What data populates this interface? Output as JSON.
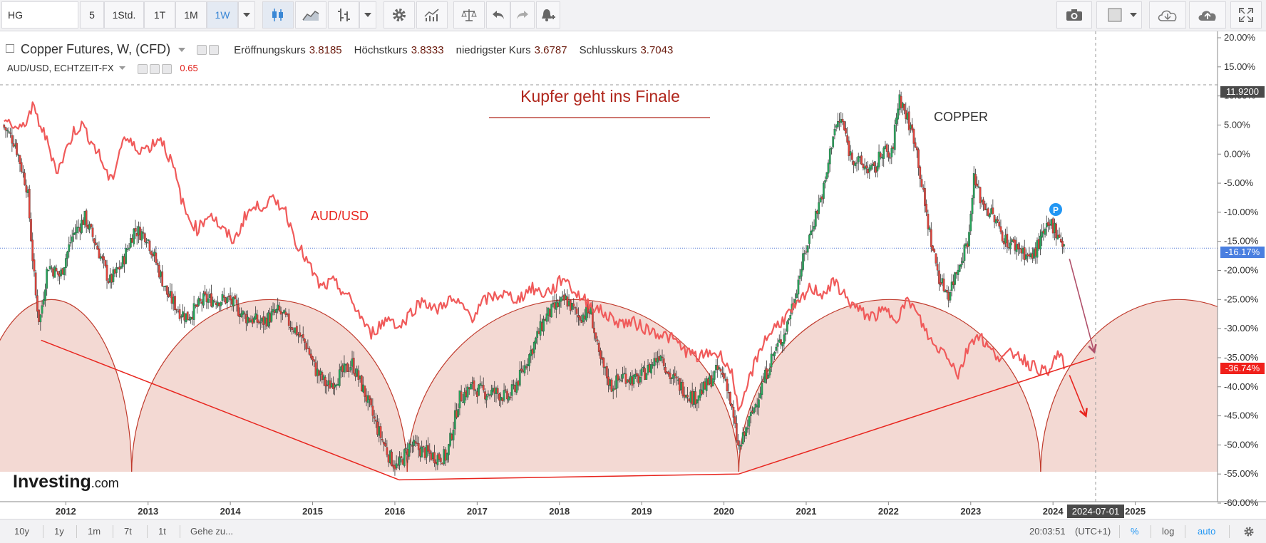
{
  "toolbar": {
    "symbol": "HG",
    "intervals": [
      "5",
      "1Std.",
      "1T",
      "1M",
      "1W"
    ],
    "active_interval": "1W"
  },
  "legend": {
    "title": "Copper Futures, W, (CFD)",
    "open_label": "Eröffnungskurs",
    "open_value": "3.8185",
    "high_label": "Höchstkurs",
    "high_value": "3.8333",
    "low_label": "niedrigster Kurs",
    "low_value": "3.6787",
    "close_label": "Schlusskurs",
    "close_value": "3.7043",
    "overlay_name": "AUD/USD, ECHTZEIT-FX",
    "overlay_value": "0.65"
  },
  "annotations": {
    "headline": "Kupfer geht ins Finale",
    "aud_label": "AUD/USD",
    "copper_label": "COPPER",
    "marker": "P"
  },
  "price_badges": {
    "crosshair": "11.9200",
    "current": "-16.17%",
    "overlay": "-36.74%"
  },
  "date_badge": "2024-07-01",
  "watermark": "Investing",
  "watermark_suffix": ".com",
  "bottom": {
    "ranges": [
      "10y",
      "1y",
      "1m",
      "7t",
      "1t"
    ],
    "goto": "Gehe zu...",
    "time": "20:03:51",
    "tz": "(UTC+1)",
    "pct": "%",
    "log": "log",
    "auto": "auto"
  },
  "chart_data": {
    "type": "line",
    "title": "",
    "xlabel": "",
    "ylabel": "",
    "x_ticks": [
      "2012",
      "2013",
      "2014",
      "2015",
      "2016",
      "2017",
      "2018",
      "2019",
      "2020",
      "2021",
      "2022",
      "2023",
      "2024",
      "2025"
    ],
    "y_ticks": [
      "20.00%",
      "15.00%",
      "10.00%",
      "5.00%",
      "0.00%",
      "-5.00%",
      "-10.00%",
      "-15.00%",
      "-20.00%",
      "-25.00%",
      "-30.00%",
      "-35.00%",
      "-40.00%",
      "-45.00%",
      "-50.00%",
      "-55.00%",
      "-60.00%"
    ],
    "ylim": [
      -60,
      20
    ],
    "xlim": [
      2011.2,
      2026.0
    ],
    "grid": false,
    "copper_color": "#26a65b",
    "copper_down_color": "#e0433b",
    "aud_color": "#f05a5a",
    "arc_color": "#c0392b",
    "series": [
      {
        "name": "COPPER",
        "points": [
          [
            2011.25,
            5
          ],
          [
            2011.4,
            2
          ],
          [
            2011.55,
            -6
          ],
          [
            2011.65,
            -24
          ],
          [
            2011.7,
            -29
          ],
          [
            2011.8,
            -19
          ],
          [
            2011.95,
            -21
          ],
          [
            2012.1,
            -14
          ],
          [
            2012.25,
            -11
          ],
          [
            2012.4,
            -16
          ],
          [
            2012.55,
            -22
          ],
          [
            2012.7,
            -19
          ],
          [
            2012.85,
            -13
          ],
          [
            2013.0,
            -14
          ],
          [
            2013.1,
            -18
          ],
          [
            2013.25,
            -24
          ],
          [
            2013.4,
            -27
          ],
          [
            2013.5,
            -28
          ],
          [
            2013.7,
            -25
          ],
          [
            2013.9,
            -25
          ],
          [
            2014.0,
            -25
          ],
          [
            2014.2,
            -28
          ],
          [
            2014.4,
            -29
          ],
          [
            2014.6,
            -27
          ],
          [
            2014.8,
            -30
          ],
          [
            2014.95,
            -33
          ],
          [
            2015.05,
            -37
          ],
          [
            2015.2,
            -40
          ],
          [
            2015.35,
            -38
          ],
          [
            2015.5,
            -36
          ],
          [
            2015.65,
            -41
          ],
          [
            2015.8,
            -47
          ],
          [
            2015.95,
            -52
          ],
          [
            2016.05,
            -54
          ],
          [
            2016.2,
            -50
          ],
          [
            2016.35,
            -51
          ],
          [
            2016.5,
            -52
          ],
          [
            2016.65,
            -52
          ],
          [
            2016.8,
            -42
          ],
          [
            2016.95,
            -40
          ],
          [
            2017.1,
            -41
          ],
          [
            2017.25,
            -41
          ],
          [
            2017.4,
            -42
          ],
          [
            2017.55,
            -38
          ],
          [
            2017.7,
            -33
          ],
          [
            2017.85,
            -28
          ],
          [
            2018.0,
            -26
          ],
          [
            2018.1,
            -25
          ],
          [
            2018.25,
            -28
          ],
          [
            2018.4,
            -27
          ],
          [
            2018.5,
            -35
          ],
          [
            2018.65,
            -40
          ],
          [
            2018.8,
            -38
          ],
          [
            2018.95,
            -39
          ],
          [
            2019.1,
            -37
          ],
          [
            2019.25,
            -34
          ],
          [
            2019.35,
            -38
          ],
          [
            2019.5,
            -40
          ],
          [
            2019.65,
            -42
          ],
          [
            2019.8,
            -40
          ],
          [
            2019.95,
            -37
          ],
          [
            2020.05,
            -39
          ],
          [
            2020.15,
            -47
          ],
          [
            2020.2,
            -51
          ],
          [
            2020.3,
            -47
          ],
          [
            2020.45,
            -41
          ],
          [
            2020.6,
            -35
          ],
          [
            2020.75,
            -31
          ],
          [
            2020.85,
            -26
          ],
          [
            2020.95,
            -20
          ],
          [
            2021.1,
            -12
          ],
          [
            2021.25,
            -5
          ],
          [
            2021.35,
            4
          ],
          [
            2021.45,
            6
          ],
          [
            2021.55,
            0
          ],
          [
            2021.7,
            -2
          ],
          [
            2021.85,
            -3
          ],
          [
            2021.95,
            1
          ],
          [
            2022.05,
            -1
          ],
          [
            2022.15,
            10
          ],
          [
            2022.25,
            6
          ],
          [
            2022.35,
            2
          ],
          [
            2022.45,
            -8
          ],
          [
            2022.55,
            -16
          ],
          [
            2022.65,
            -22
          ],
          [
            2022.75,
            -24
          ],
          [
            2022.9,
            -18
          ],
          [
            2023.0,
            -14
          ],
          [
            2023.05,
            -4
          ],
          [
            2023.15,
            -8
          ],
          [
            2023.3,
            -11
          ],
          [
            2023.45,
            -15
          ],
          [
            2023.6,
            -16
          ],
          [
            2023.75,
            -18
          ],
          [
            2023.9,
            -14
          ],
          [
            2024.0,
            -12
          ],
          [
            2024.1,
            -14
          ],
          [
            2024.15,
            -16
          ]
        ]
      },
      {
        "name": "AUD/USD",
        "points": [
          [
            2011.25,
            6
          ],
          [
            2011.45,
            4
          ],
          [
            2011.6,
            8
          ],
          [
            2011.75,
            3
          ],
          [
            2011.9,
            -3
          ],
          [
            2012.1,
            4
          ],
          [
            2012.2,
            5
          ],
          [
            2012.4,
            0
          ],
          [
            2012.55,
            -5
          ],
          [
            2012.7,
            3
          ],
          [
            2012.85,
            1
          ],
          [
            2013.0,
            1
          ],
          [
            2013.15,
            3
          ],
          [
            2013.3,
            -2
          ],
          [
            2013.45,
            -10
          ],
          [
            2013.6,
            -13
          ],
          [
            2013.75,
            -10
          ],
          [
            2013.9,
            -13
          ],
          [
            2014.05,
            -15
          ],
          [
            2014.2,
            -10
          ],
          [
            2014.35,
            -9
          ],
          [
            2014.5,
            -8
          ],
          [
            2014.65,
            -9
          ],
          [
            2014.8,
            -15
          ],
          [
            2014.95,
            -19
          ],
          [
            2015.1,
            -23
          ],
          [
            2015.25,
            -22
          ],
          [
            2015.4,
            -24
          ],
          [
            2015.55,
            -27
          ],
          [
            2015.7,
            -31
          ],
          [
            2015.85,
            -29
          ],
          [
            2015.95,
            -28
          ],
          [
            2016.05,
            -30
          ],
          [
            2016.2,
            -27
          ],
          [
            2016.35,
            -25
          ],
          [
            2016.5,
            -27
          ],
          [
            2016.65,
            -25
          ],
          [
            2016.8,
            -26
          ],
          [
            2016.95,
            -28
          ],
          [
            2017.1,
            -25
          ],
          [
            2017.3,
            -24
          ],
          [
            2017.5,
            -25
          ],
          [
            2017.65,
            -23
          ],
          [
            2017.8,
            -24
          ],
          [
            2017.95,
            -23
          ],
          [
            2018.05,
            -21
          ],
          [
            2018.2,
            -24
          ],
          [
            2018.4,
            -26
          ],
          [
            2018.6,
            -28
          ],
          [
            2018.75,
            -29
          ],
          [
            2018.9,
            -29
          ],
          [
            2019.05,
            -30
          ],
          [
            2019.25,
            -31
          ],
          [
            2019.4,
            -32
          ],
          [
            2019.55,
            -34
          ],
          [
            2019.7,
            -35
          ],
          [
            2019.85,
            -34
          ],
          [
            2020.0,
            -35
          ],
          [
            2020.1,
            -38
          ],
          [
            2020.2,
            -45
          ],
          [
            2020.3,
            -39
          ],
          [
            2020.45,
            -33
          ],
          [
            2020.6,
            -30
          ],
          [
            2020.75,
            -28
          ],
          [
            2020.9,
            -26
          ],
          [
            2021.05,
            -23
          ],
          [
            2021.2,
            -24
          ],
          [
            2021.35,
            -22
          ],
          [
            2021.5,
            -25
          ],
          [
            2021.65,
            -27
          ],
          [
            2021.8,
            -28
          ],
          [
            2021.95,
            -27
          ],
          [
            2022.1,
            -28
          ],
          [
            2022.25,
            -25
          ],
          [
            2022.4,
            -29
          ],
          [
            2022.55,
            -33
          ],
          [
            2022.7,
            -34
          ],
          [
            2022.85,
            -38
          ],
          [
            2023.0,
            -32
          ],
          [
            2023.1,
            -31
          ],
          [
            2023.25,
            -34
          ],
          [
            2023.4,
            -35
          ],
          [
            2023.55,
            -34
          ],
          [
            2023.7,
            -36
          ],
          [
            2023.85,
            -37
          ],
          [
            2023.95,
            -38
          ],
          [
            2024.05,
            -34
          ],
          [
            2024.15,
            -36.7
          ]
        ]
      }
    ],
    "arcs": [
      [
        2010.85,
        2012.8
      ],
      [
        2012.8,
        2016.15
      ],
      [
        2016.15,
        2020.18
      ],
      [
        2020.18,
        2023.85
      ],
      [
        2023.85,
        2027.2
      ]
    ],
    "arc_peak_value": -25,
    "arc_base_value": -55,
    "trendlines": [
      [
        [
          2011.7,
          -32
        ],
        [
          2016.05,
          -56
        ]
      ],
      [
        [
          2016.05,
          -56
        ],
        [
          2020.18,
          -55
        ]
      ],
      [
        [
          2020.18,
          -55
        ],
        [
          2024.5,
          -35
        ]
      ]
    ],
    "arrows": [
      [
        [
          2024.2,
          -18
        ],
        [
          2024.5,
          -34
        ]
      ],
      [
        [
          2024.2,
          -38
        ],
        [
          2024.4,
          -45
        ]
      ]
    ]
  }
}
